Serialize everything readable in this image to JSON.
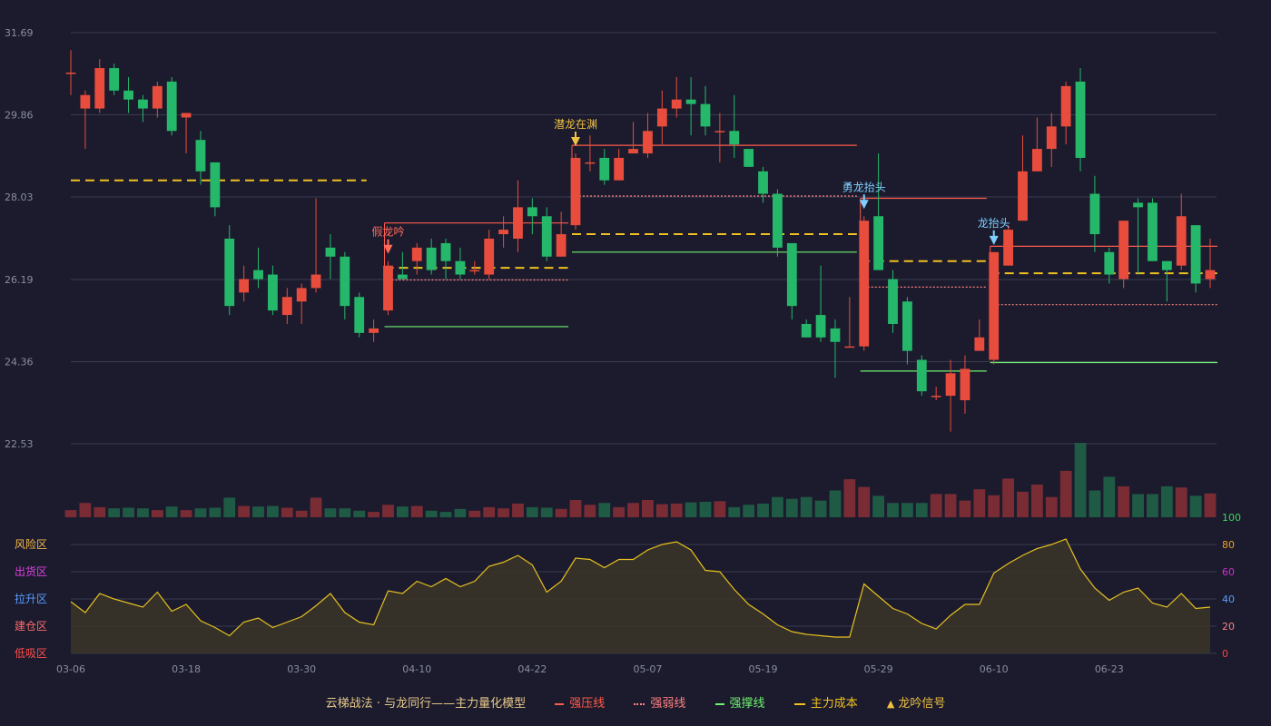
{
  "chart_data": {
    "type": "candlestick",
    "price_axis": {
      "ticks": [
        "31.69",
        "29.86",
        "28.03",
        "26.19",
        "24.36",
        "22.53"
      ],
      "range": [
        22.53,
        31.69
      ]
    },
    "x_tick_labels": [
      "03-06",
      "03-18",
      "03-30",
      "04-10",
      "04-22",
      "05-07",
      "05-19",
      "05-29",
      "06-10",
      "06-23"
    ],
    "x_tick_indices": [
      0,
      8,
      16,
      24,
      32,
      40,
      48,
      56,
      64,
      72
    ],
    "candles": [
      [
        30.8,
        30.8,
        31.3,
        30.3
      ],
      [
        30.0,
        30.3,
        30.4,
        29.1
      ],
      [
        30.0,
        30.9,
        31.1,
        29.9
      ],
      [
        30.9,
        30.4,
        31.0,
        30.3
      ],
      [
        30.4,
        30.2,
        30.7,
        29.9
      ],
      [
        30.2,
        30.0,
        30.3,
        29.7
      ],
      [
        30.0,
        30.5,
        30.6,
        29.8
      ],
      [
        30.6,
        29.5,
        30.7,
        29.4
      ],
      [
        29.8,
        29.9,
        29.9,
        29.0
      ],
      [
        29.3,
        28.6,
        29.5,
        28.3
      ],
      [
        28.8,
        27.8,
        28.8,
        27.6
      ],
      [
        27.1,
        25.6,
        27.4,
        25.4
      ],
      [
        25.9,
        26.2,
        26.5,
        25.7
      ],
      [
        26.4,
        26.2,
        26.9,
        26.0
      ],
      [
        26.3,
        25.5,
        26.5,
        25.4
      ],
      [
        25.4,
        25.8,
        26.0,
        25.2
      ],
      [
        25.7,
        26.0,
        26.1,
        25.2
      ],
      [
        26.0,
        26.3,
        28.0,
        25.9
      ],
      [
        26.9,
        26.7,
        27.2,
        26.2
      ],
      [
        26.7,
        25.6,
        26.8,
        25.3
      ],
      [
        25.8,
        25.0,
        25.9,
        24.9
      ],
      [
        25.0,
        25.1,
        25.3,
        24.8
      ],
      [
        25.5,
        26.5,
        26.6,
        25.4
      ],
      [
        26.3,
        26.2,
        26.8,
        26.2
      ],
      [
        26.6,
        26.9,
        27.0,
        26.3
      ],
      [
        26.9,
        26.4,
        27.1,
        26.3
      ],
      [
        27.0,
        26.6,
        27.1,
        26.2
      ],
      [
        26.6,
        26.3,
        26.9,
        26.2
      ],
      [
        26.4,
        26.4,
        26.6,
        26.3
      ],
      [
        26.3,
        27.1,
        27.3,
        26.2
      ],
      [
        27.2,
        27.3,
        27.6,
        26.9
      ],
      [
        27.1,
        27.8,
        28.4,
        26.8
      ],
      [
        27.8,
        27.6,
        28.0,
        27.2
      ],
      [
        27.6,
        26.7,
        27.8,
        26.6
      ],
      [
        26.7,
        27.2,
        27.7,
        26.7
      ],
      [
        27.4,
        28.9,
        29.0,
        27.3
      ],
      [
        28.8,
        28.8,
        29.4,
        28.6
      ],
      [
        28.9,
        28.4,
        29.1,
        28.3
      ],
      [
        28.4,
        28.9,
        29.1,
        28.4
      ],
      [
        29.0,
        29.1,
        29.7,
        29.0
      ],
      [
        29.0,
        29.5,
        29.9,
        28.9
      ],
      [
        29.6,
        30.0,
        30.4,
        29.2
      ],
      [
        30.0,
        30.2,
        30.7,
        29.8
      ],
      [
        30.2,
        30.1,
        30.7,
        29.4
      ],
      [
        30.1,
        29.6,
        30.5,
        29.4
      ],
      [
        29.5,
        29.5,
        29.9,
        28.8
      ],
      [
        29.5,
        29.2,
        30.3,
        28.9
      ],
      [
        29.1,
        28.7,
        29.1,
        28.7
      ],
      [
        28.6,
        28.1,
        28.7,
        27.9
      ],
      [
        28.1,
        26.9,
        28.2,
        26.7
      ],
      [
        27.0,
        25.6,
        27.0,
        25.3
      ],
      [
        25.2,
        24.9,
        25.3,
        24.9
      ],
      [
        25.4,
        24.9,
        26.5,
        24.8
      ],
      [
        25.1,
        24.8,
        25.3,
        24.0
      ],
      [
        24.7,
        24.7,
        25.8,
        24.7
      ],
      [
        24.7,
        27.5,
        27.6,
        24.6
      ],
      [
        27.6,
        26.4,
        29.0,
        26.4
      ],
      [
        26.2,
        25.2,
        26.4,
        25.0
      ],
      [
        25.7,
        24.6,
        25.8,
        24.3
      ],
      [
        24.4,
        23.7,
        24.5,
        23.6
      ],
      [
        23.6,
        23.6,
        23.8,
        23.5
      ],
      [
        23.6,
        24.1,
        24.4,
        22.8
      ],
      [
        23.5,
        24.2,
        24.5,
        23.2
      ],
      [
        24.6,
        24.9,
        25.3,
        24.7
      ],
      [
        24.4,
        26.8,
        26.8,
        24.3
      ],
      [
        26.5,
        27.3,
        27.4,
        26.5
      ],
      [
        27.5,
        28.6,
        29.4,
        27.5
      ],
      [
        28.6,
        29.1,
        29.8,
        28.6
      ],
      [
        29.1,
        29.6,
        29.9,
        28.7
      ],
      [
        29.6,
        30.5,
        30.6,
        29.2
      ],
      [
        30.6,
        28.9,
        30.9,
        28.6
      ],
      [
        28.1,
        27.2,
        28.5,
        26.8
      ],
      [
        26.8,
        26.3,
        26.9,
        26.1
      ],
      [
        26.2,
        27.5,
        27.5,
        26.0
      ],
      [
        27.9,
        27.8,
        28.0,
        26.3
      ],
      [
        27.9,
        26.6,
        28.0,
        26.6
      ],
      [
        26.6,
        26.4,
        26.6,
        25.7
      ],
      [
        26.5,
        27.6,
        28.1,
        26.4
      ],
      [
        27.4,
        26.1,
        27.4,
        25.9
      ],
      [
        26.2,
        26.4,
        27.1,
        26.0
      ]
    ],
    "volume_colors_hint": "red = close >= open, green = close < open",
    "volumes": [
      12,
      24,
      17,
      15,
      16,
      15,
      12,
      18,
      12,
      15,
      16,
      33,
      19,
      18,
      19,
      16,
      11,
      33,
      15,
      15,
      11,
      9,
      21,
      18,
      19,
      11,
      9,
      14,
      11,
      17,
      15,
      23,
      17,
      16,
      14,
      29,
      21,
      24,
      17,
      24,
      29,
      22,
      23,
      25,
      26,
      27,
      17,
      21,
      23,
      34,
      31,
      34,
      28,
      45,
      64,
      51,
      36,
      24,
      24,
      24,
      39,
      39,
      28,
      47,
      37,
      65,
      43,
      55,
      34,
      78,
      125,
      45,
      68,
      52,
      39,
      39,
      52,
      50,
      36,
      40
    ],
    "indicator_axis": {
      "ticks": [
        "100",
        "80",
        "60",
        "40",
        "20",
        "0"
      ],
      "range": [
        0,
        100
      ]
    },
    "indicator_zones": [
      "风险区",
      "出货区",
      "拉升区",
      "建仓区",
      "低吸区"
    ],
    "indicator": [
      38,
      30,
      44,
      40,
      37,
      34,
      45,
      31,
      36,
      24,
      19,
      13,
      23,
      26,
      19,
      23,
      27,
      35,
      44,
      30,
      23,
      21,
      46,
      44,
      53,
      49,
      55,
      49,
      53,
      64,
      67,
      72,
      65,
      45,
      53,
      70,
      69,
      63,
      69,
      69,
      76,
      80,
      82,
      76,
      61,
      60,
      47,
      36,
      29,
      21,
      16,
      14,
      13,
      12,
      12,
      51,
      42,
      33,
      29,
      22,
      18,
      28,
      36,
      36,
      59,
      66,
      72,
      77,
      80,
      84,
      62,
      48,
      39,
      45,
      48,
      37,
      34,
      44,
      33,
      34
    ],
    "zones": [
      {
        "start": 22,
        "end": 34,
        "resist": 27.45,
        "weak": 26.18,
        "cost": 26.45,
        "support": 25.14
      },
      {
        "start": 35,
        "end": 54,
        "resist": 29.18,
        "weak": 28.05,
        "cost": 27.2,
        "support": 26.8
      },
      {
        "start": 55,
        "end": 63,
        "resist": 28.0,
        "weak": 26.02,
        "cost": 26.6,
        "support": 24.15
      },
      {
        "start": 64,
        "end": 79,
        "resist": 26.93,
        "weak": 25.63,
        "cost": 26.33,
        "support": 24.34
      }
    ],
    "cost_lines": [
      {
        "start": 0,
        "end": 20,
        "value": 28.4
      }
    ],
    "signals": [
      {
        "index": 22,
        "label": "假龙吟",
        "color": "#ff6a5c"
      },
      {
        "index": 35,
        "label": "潜龙在渊",
        "color": "#f0c040"
      },
      {
        "index": 55,
        "label": "勇龙抬头",
        "color": "#7fcfff"
      },
      {
        "index": 64,
        "label": "龙抬头",
        "color": "#7fcfff"
      }
    ]
  },
  "legend": {
    "title": "云梯战法 · 与龙同行——主力量化模型",
    "items": [
      {
        "label": "强压线",
        "color": "#ff5a4c",
        "style": "solid"
      },
      {
        "label": "强弱线",
        "color": "#ff8080",
        "style": "dotted"
      },
      {
        "label": "强撑线",
        "color": "#6ff06f",
        "style": "solid"
      },
      {
        "label": "主力成本",
        "color": "#f0c020",
        "style": "dashed"
      },
      {
        "label": "龙吟信号",
        "color": "#f0c040",
        "style": "triangle"
      }
    ]
  },
  "colors": {
    "up": "#e84c3d",
    "down": "#26b86a",
    "vol_up": "#7a2c35",
    "vol_down": "#1f5a45",
    "indicator_line": "#e6c020",
    "grid": "#3a3b4e",
    "axis_text": "#8a8ca0",
    "zone_colors": [
      "#f4b94a",
      "#e040e0",
      "#5b9cff",
      "#ff6a6a",
      "#ff4d4d"
    ],
    "indicator_axis_colors": [
      "#3dd65a",
      "#f0a020",
      "#d030d0",
      "#5b9cff",
      "#ff8080",
      "#ff4040"
    ]
  }
}
